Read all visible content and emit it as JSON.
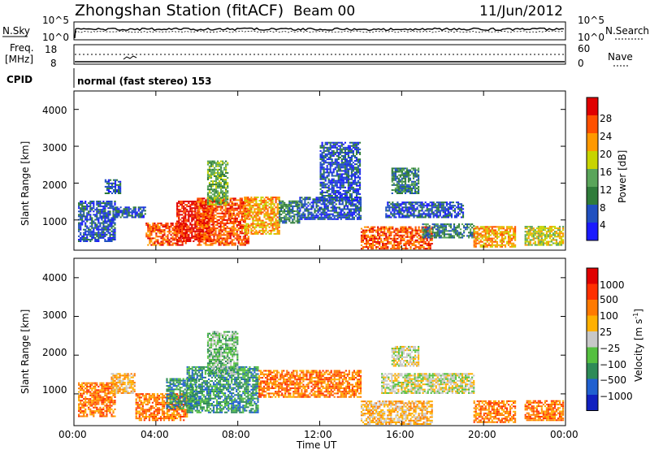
{
  "header": {
    "station_title": "Zhongshan Station (fitACF)",
    "beam": "Beam 00",
    "date": "11/Jun/2012"
  },
  "noise_panel": {
    "left_label": "N.Sky",
    "right_label": "N.Search",
    "left_ticks": [
      "10^5",
      "10^0"
    ],
    "right_ticks": [
      "10^5",
      "10^0"
    ]
  },
  "freq_panel": {
    "left_label_line1": "Freq.",
    "left_label_line2": "[MHz]",
    "right_label": "Nave",
    "left_ticks": [
      "18",
      "8"
    ],
    "right_ticks": [
      "60",
      "0"
    ]
  },
  "cpid": {
    "label": "CPID",
    "value": "normal (fast stereo) 153"
  },
  "power_panel": {
    "ylabel": "Slant Range [km]",
    "y_ticks": [
      "4000",
      "3000",
      "2000",
      "1000"
    ],
    "colorbar_title": "Power [dB]",
    "colorbar_ticks": [
      "28",
      "24",
      "20",
      "16",
      "12",
      "8",
      "4"
    ],
    "colors": [
      "#1a1aff",
      "#2050c0",
      "#2f7c3a",
      "#5aa55a",
      "#c8d400",
      "#ff9900",
      "#ff5000",
      "#e00000"
    ]
  },
  "velocity_panel": {
    "ylabel": "Slant Range [km]",
    "y_ticks": [
      "4000",
      "3000",
      "2000",
      "1000"
    ],
    "colorbar_title": "Velocity [m s",
    "colorbar_title_sup": "-1",
    "colorbar_title_end": "]",
    "colorbar_ticks": [
      "1000",
      "500",
      "100",
      "25",
      "−25",
      "−100",
      "−500",
      "−1000"
    ],
    "colors": [
      "#1020c0",
      "#2060d0",
      "#2e8b57",
      "#55c040",
      "#c8c8c8",
      "#ffb000",
      "#ff7a00",
      "#ff3000",
      "#e00000"
    ]
  },
  "x_axis": {
    "ticks": [
      "00:00",
      "04:00",
      "08:00",
      "12:00",
      "16:00",
      "20:00",
      "00:00"
    ],
    "label": "Time UT"
  },
  "chart_data": {
    "type": "heatmap",
    "x_range_hours": [
      0,
      24
    ],
    "y_range_km": [
      180,
      4500
    ],
    "power_clusters": [
      {
        "t0": 0.2,
        "t1": 2.0,
        "r0": 400,
        "r1": 1500,
        "level": 1
      },
      {
        "t0": 1.5,
        "t1": 2.3,
        "r0": 1700,
        "r1": 2100,
        "level": 1
      },
      {
        "t0": 2.0,
        "t1": 3.5,
        "r0": 1050,
        "r1": 1350,
        "level": 1
      },
      {
        "t0": 3.5,
        "t1": 5.5,
        "r0": 300,
        "r1": 900,
        "level": 6
      },
      {
        "t0": 5.0,
        "t1": 6.8,
        "r0": 400,
        "r1": 1500,
        "level": 7
      },
      {
        "t0": 6.0,
        "t1": 8.5,
        "r0": 300,
        "r1": 1600,
        "level": 6
      },
      {
        "t0": 6.5,
        "t1": 7.5,
        "r0": 1400,
        "r1": 2600,
        "level": 3
      },
      {
        "t0": 8.3,
        "t1": 10.0,
        "r0": 600,
        "r1": 1600,
        "level": 5
      },
      {
        "t0": 10.0,
        "t1": 11.0,
        "r0": 900,
        "r1": 1500,
        "level": 2
      },
      {
        "t0": 11.0,
        "t1": 14.0,
        "r0": 1000,
        "r1": 1600,
        "level": 1
      },
      {
        "t0": 12.0,
        "t1": 14.0,
        "r0": 1500,
        "r1": 3100,
        "level": 1
      },
      {
        "t0": 14.0,
        "t1": 17.5,
        "r0": 200,
        "r1": 800,
        "level": 6
      },
      {
        "t0": 15.2,
        "t1": 19.0,
        "r0": 1050,
        "r1": 1500,
        "level": 1
      },
      {
        "t0": 15.5,
        "t1": 16.8,
        "r0": 1700,
        "r1": 2400,
        "level": 2
      },
      {
        "t0": 17.0,
        "t1": 19.5,
        "r0": 500,
        "r1": 900,
        "level": 2
      },
      {
        "t0": 19.5,
        "t1": 21.5,
        "r0": 250,
        "r1": 800,
        "level": 5
      },
      {
        "t0": 22.0,
        "t1": 23.9,
        "r0": 300,
        "r1": 800,
        "level": 4
      }
    ],
    "velocity_clusters": [
      {
        "t0": 0.2,
        "t1": 2.0,
        "r0": 400,
        "r1": 1300,
        "level": 6
      },
      {
        "t0": 1.8,
        "t1": 3.0,
        "r0": 1000,
        "r1": 1500,
        "level": 5
      },
      {
        "t0": 3.0,
        "t1": 5.5,
        "r0": 300,
        "r1": 1000,
        "level": 6
      },
      {
        "t0": 4.5,
        "t1": 6.0,
        "r0": 600,
        "r1": 1400,
        "level": 2
      },
      {
        "t0": 5.5,
        "t1": 9.0,
        "r0": 500,
        "r1": 1700,
        "level": 2
      },
      {
        "t0": 6.5,
        "t1": 8.0,
        "r0": 1500,
        "r1": 2600,
        "level": 3
      },
      {
        "t0": 9.0,
        "t1": 14.0,
        "r0": 900,
        "r1": 1600,
        "level": 6
      },
      {
        "t0": 14.0,
        "t1": 17.5,
        "r0": 200,
        "r1": 800,
        "level": 5
      },
      {
        "t0": 15.0,
        "t1": 19.5,
        "r0": 1000,
        "r1": 1500,
        "level": 4
      },
      {
        "t0": 15.5,
        "t1": 16.8,
        "r0": 1700,
        "r1": 2200,
        "level": 4
      },
      {
        "t0": 19.5,
        "t1": 21.5,
        "r0": 250,
        "r1": 800,
        "level": 6
      },
      {
        "t0": 22.0,
        "t1": 23.9,
        "r0": 300,
        "r1": 800,
        "level": 6
      }
    ]
  }
}
